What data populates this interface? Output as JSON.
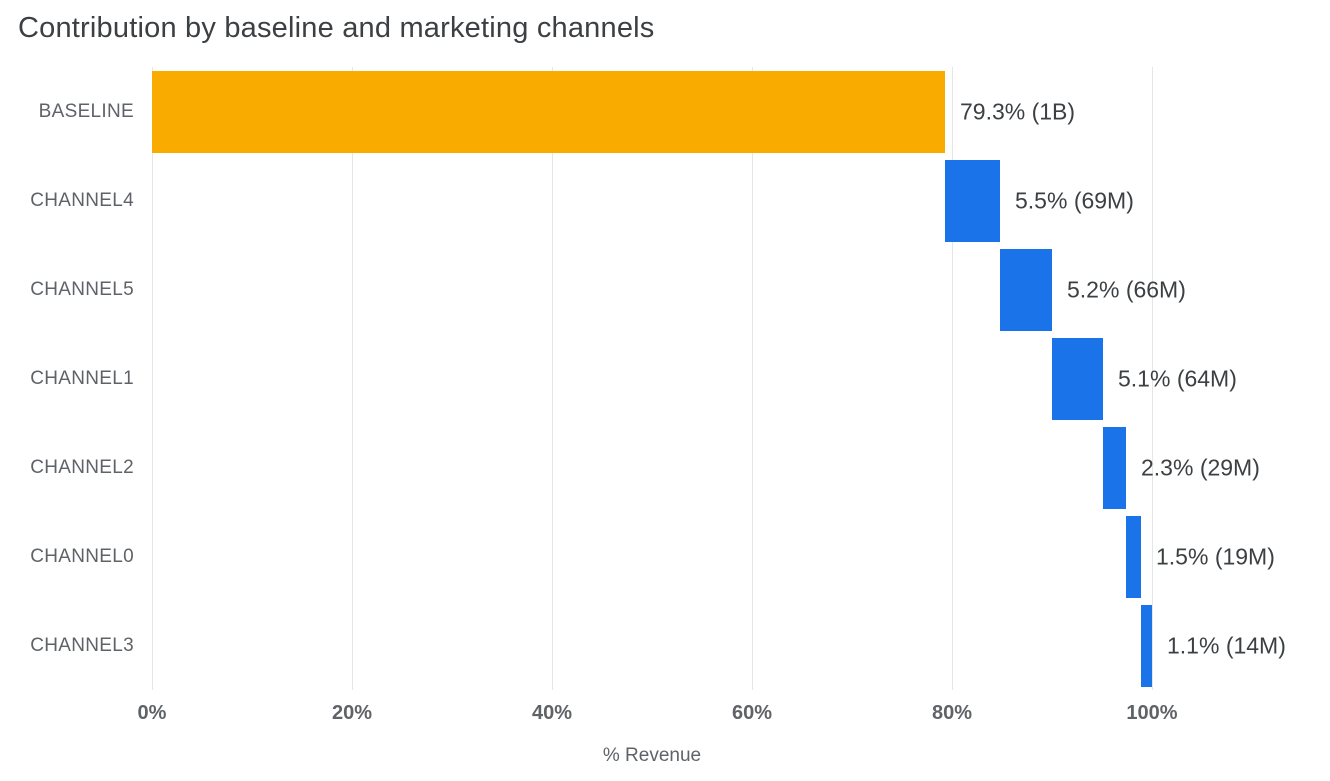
{
  "chart_data": {
    "type": "bar",
    "variant": "horizontal-waterfall",
    "title": "Contribution by baseline and marketing channels",
    "xlabel": "% Revenue",
    "categories": [
      "BASELINE",
      "CHANNEL4",
      "CHANNEL5",
      "CHANNEL1",
      "CHANNEL2",
      "CHANNEL0",
      "CHANNEL3"
    ],
    "bars": [
      {
        "category": "BASELINE",
        "start": 0,
        "value": 79.3,
        "end": 79.3,
        "label": "79.3% (1B)",
        "color": "#F9AB00"
      },
      {
        "category": "CHANNEL4",
        "start": 79.3,
        "value": 5.5,
        "end": 84.8,
        "label": "5.5% (69M)",
        "color": "#1A73E8"
      },
      {
        "category": "CHANNEL5",
        "start": 84.8,
        "value": 5.2,
        "end": 90.0,
        "label": "5.2% (66M)",
        "color": "#1A73E8"
      },
      {
        "category": "CHANNEL1",
        "start": 90.0,
        "value": 5.1,
        "end": 95.1,
        "label": "5.1% (64M)",
        "color": "#1A73E8"
      },
      {
        "category": "CHANNEL2",
        "start": 95.1,
        "value": 2.3,
        "end": 97.4,
        "label": "2.3% (29M)",
        "color": "#1A73E8"
      },
      {
        "category": "CHANNEL0",
        "start": 97.4,
        "value": 1.5,
        "end": 98.9,
        "label": "1.5% (19M)",
        "color": "#1A73E8"
      },
      {
        "category": "CHANNEL3",
        "start": 98.9,
        "value": 1.1,
        "end": 100.0,
        "label": "1.1% (14M)",
        "color": "#1A73E8"
      }
    ],
    "x_ticks": [
      {
        "value": 0,
        "label": "0%"
      },
      {
        "value": 20,
        "label": "20%"
      },
      {
        "value": 40,
        "label": "40%"
      },
      {
        "value": 60,
        "label": "60%"
      },
      {
        "value": 80,
        "label": "80%"
      },
      {
        "value": 100,
        "label": "100%"
      }
    ],
    "xlim": [
      0,
      118
    ],
    "grid": true,
    "legend": false,
    "colors": {
      "baseline": "#F9AB00",
      "channel": "#1A73E8",
      "gridline": "#E4E6E8"
    }
  }
}
